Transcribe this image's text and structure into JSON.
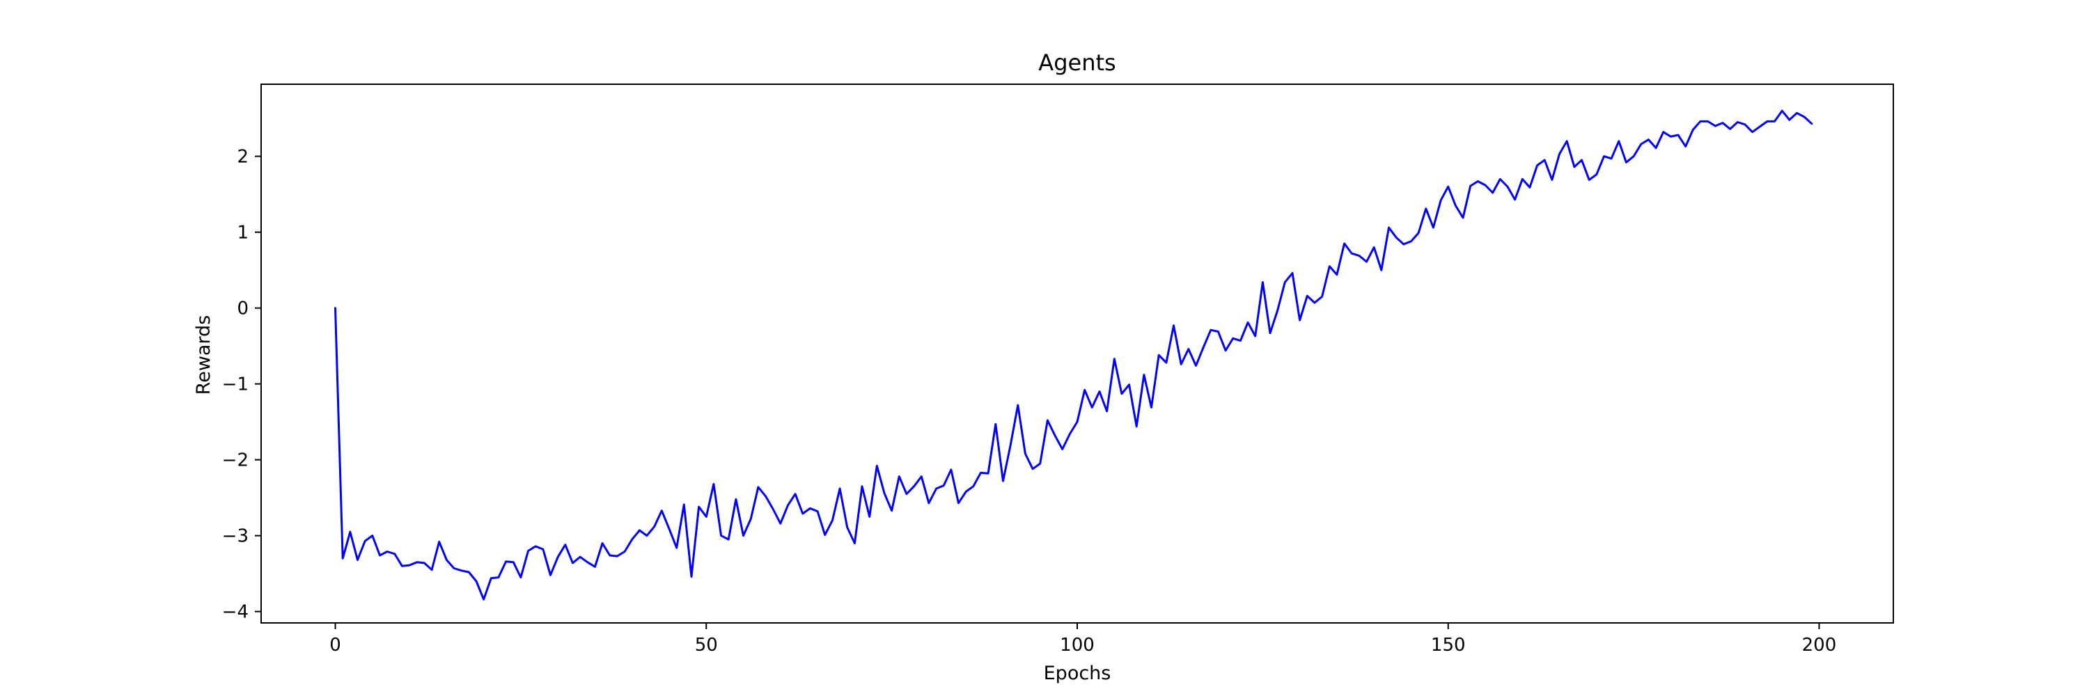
{
  "chart_data": {
    "type": "line",
    "title": "Agents",
    "xlabel": "Epochs",
    "ylabel": "Rewards",
    "xlim": [
      -10,
      210
    ],
    "ylim": [
      -4.15,
      2.95
    ],
    "xticks": [
      0,
      50,
      100,
      150,
      200
    ],
    "yticks": [
      -4,
      -3,
      -2,
      -1,
      0,
      1,
      2
    ],
    "grid": false,
    "series": [
      {
        "color": "#0000ff",
        "x_start": 0,
        "x_step": 1,
        "values": [
          0,
          -3.3,
          -2.95,
          -3.32,
          -3.07,
          -3.0,
          -3.26,
          -3.21,
          -3.24,
          -3.4,
          -3.39,
          -3.35,
          -3.36,
          -3.45,
          -3.08,
          -3.32,
          -3.43,
          -3.46,
          -3.48,
          -3.6,
          -3.84,
          -3.56,
          -3.55,
          -3.34,
          -3.35,
          -3.55,
          -3.2,
          -3.14,
          -3.18,
          -3.52,
          -3.28,
          -3.12,
          -3.36,
          -3.28,
          -3.35,
          -3.41,
          -3.1,
          -3.26,
          -3.27,
          -3.21,
          -3.05,
          -2.93,
          -3.0,
          -2.88,
          -2.67,
          -2.91,
          -3.16,
          -2.59,
          -3.54,
          -2.62,
          -2.75,
          -2.32,
          -3.0,
          -3.05,
          -2.52,
          -3.0,
          -2.78,
          -2.36,
          -2.48,
          -2.65,
          -2.84,
          -2.6,
          -2.45,
          -2.71,
          -2.64,
          -2.68,
          -2.99,
          -2.8,
          -2.38,
          -2.89,
          -3.1,
          -2.35,
          -2.75,
          -2.08,
          -2.44,
          -2.67,
          -2.22,
          -2.45,
          -2.35,
          -2.22,
          -2.57,
          -2.38,
          -2.34,
          -2.13,
          -2.57,
          -2.42,
          -2.35,
          -2.17,
          -2.18,
          -1.53,
          -2.28,
          -1.81,
          -1.28,
          -1.92,
          -2.12,
          -2.05,
          -1.48,
          -1.68,
          -1.86,
          -1.66,
          -1.5,
          -1.08,
          -1.31,
          -1.1,
          -1.36,
          -0.67,
          -1.13,
          -1.01,
          -1.56,
          -0.88,
          -1.31,
          -0.62,
          -0.72,
          -0.23,
          -0.74,
          -0.54,
          -0.76,
          -0.52,
          -0.29,
          -0.31,
          -0.56,
          -0.4,
          -0.43,
          -0.19,
          -0.37,
          0.34,
          -0.33,
          -0.03,
          0.34,
          0.46,
          -0.16,
          0.16,
          0.07,
          0.15,
          0.55,
          0.44,
          0.85,
          0.72,
          0.69,
          0.61,
          0.8,
          0.5,
          1.06,
          0.93,
          0.84,
          0.88,
          0.99,
          1.31,
          1.06,
          1.42,
          1.6,
          1.35,
          1.19,
          1.61,
          1.67,
          1.62,
          1.52,
          1.7,
          1.6,
          1.43,
          1.7,
          1.59,
          1.88,
          1.95,
          1.69,
          2.03,
          2.2,
          1.86,
          1.95,
          1.69,
          1.76,
          2.0,
          1.97,
          2.2,
          1.92,
          2.0,
          2.16,
          2.22,
          2.11,
          2.32,
          2.26,
          2.28,
          2.13,
          2.35,
          2.46,
          2.46,
          2.4,
          2.44,
          2.36,
          2.45,
          2.42,
          2.32,
          2.39,
          2.46,
          2.46,
          2.6,
          2.48,
          2.57,
          2.52,
          2.43
        ]
      }
    ]
  }
}
